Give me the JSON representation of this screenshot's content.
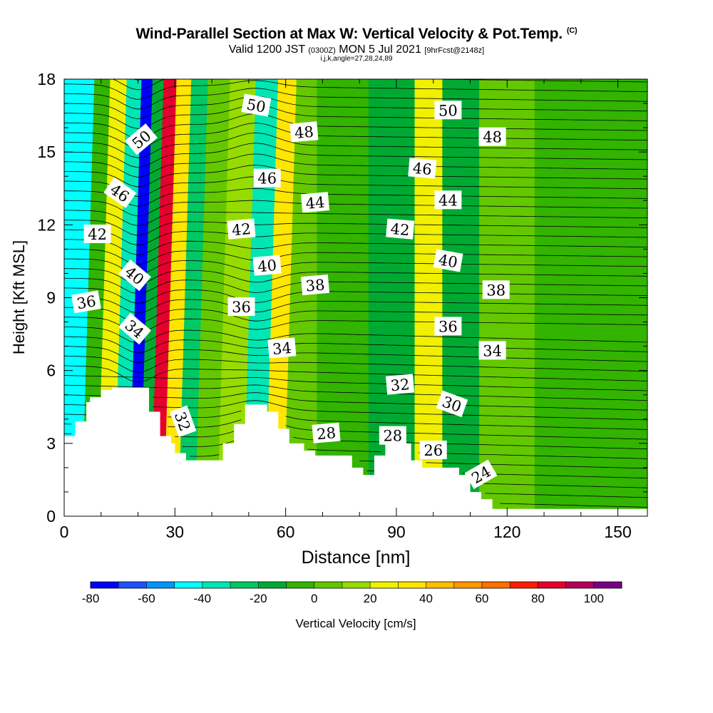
{
  "title": {
    "main": "Wind-Parallel Section at Max W: Vertical Velocity & Pot.Temp.",
    "copyright": "(C)",
    "valid_a": "Valid 1200 JST",
    "valid_utc": "(0300Z)",
    "valid_b": "MON 5 Jul 2021",
    "fcst": "[9hrFcst@2148z]",
    "indices": "i,j,k,angle=27,28,24,89"
  },
  "chart_data": {
    "type": "heatmap",
    "xlabel": "Distance [nm]",
    "ylabel": "Height [Kft MSL]",
    "xlim": [
      0,
      158
    ],
    "ylim": [
      0,
      18
    ],
    "xticks": [
      0,
      30,
      60,
      90,
      120,
      150
    ],
    "yticks": [
      0,
      3,
      6,
      9,
      12,
      15,
      18
    ],
    "colorbar": {
      "label": "Vertical Velocity [cm/s]",
      "tick_labels": [
        "-80",
        "-60",
        "-40",
        "-20",
        "0",
        "20",
        "40",
        "60",
        "80",
        "100"
      ],
      "range": [
        -80,
        110
      ],
      "colors": [
        "#0000ff",
        "#1e50ff",
        "#0096ff",
        "#00ffff",
        "#00e6b4",
        "#00c864",
        "#00aa32",
        "#32b400",
        "#64c800",
        "#96dc00",
        "#f0f000",
        "#ffe600",
        "#ffbe00",
        "#ff9600",
        "#ff6e00",
        "#ff1e00",
        "#e6002d",
        "#b4005a",
        "#780087"
      ]
    },
    "terrain": [
      [
        0,
        3.3
      ],
      [
        3,
        3.3
      ],
      [
        3,
        3.9
      ],
      [
        6,
        3.9
      ],
      [
        6,
        4.7
      ],
      [
        7,
        4.7
      ],
      [
        7,
        4.9
      ],
      [
        10,
        4.9
      ],
      [
        10,
        5.2
      ],
      [
        13,
        5.2
      ],
      [
        13,
        5.3
      ],
      [
        23,
        5.3
      ],
      [
        23,
        4.3
      ],
      [
        26,
        4.3
      ],
      [
        26,
        3.3
      ],
      [
        29,
        3.3
      ],
      [
        29,
        3.0
      ],
      [
        30,
        3.0
      ],
      [
        30,
        2.6
      ],
      [
        33,
        2.6
      ],
      [
        33,
        2.3
      ],
      [
        43,
        2.3
      ],
      [
        43,
        3.0
      ],
      [
        46,
        3.0
      ],
      [
        46,
        3.8
      ],
      [
        49,
        3.8
      ],
      [
        49,
        4.6
      ],
      [
        55,
        4.6
      ],
      [
        55,
        4.3
      ],
      [
        58,
        4.3
      ],
      [
        58,
        3.6
      ],
      [
        61,
        3.6
      ],
      [
        61,
        3.0
      ],
      [
        65,
        3.0
      ],
      [
        65,
        2.7
      ],
      [
        68,
        2.7
      ],
      [
        68,
        2.5
      ],
      [
        78,
        2.5
      ],
      [
        78,
        2.0
      ],
      [
        81,
        2.0
      ],
      [
        81,
        1.7
      ],
      [
        84,
        1.7
      ],
      [
        84,
        2.5
      ],
      [
        87,
        2.5
      ],
      [
        87,
        3.0
      ],
      [
        94,
        3.0
      ],
      [
        94,
        2.3
      ],
      [
        97,
        2.3
      ],
      [
        97,
        2.0
      ],
      [
        107,
        2.0
      ],
      [
        107,
        1.7
      ],
      [
        110,
        1.7
      ],
      [
        110,
        1.0
      ],
      [
        113,
        1.0
      ],
      [
        113,
        0.7
      ],
      [
        116,
        0.7
      ],
      [
        116,
        0.3
      ],
      [
        158,
        0.3
      ]
    ],
    "w_field": [
      {
        "x": 2.5,
        "w": -42
      },
      {
        "x": 7,
        "w": -10
      },
      {
        "x": 11,
        "w": 20
      },
      {
        "x": 16,
        "w": -40
      },
      {
        "x": 19,
        "w": -75
      },
      {
        "x": 22,
        "w": -20
      },
      {
        "x": 25,
        "w": 80
      },
      {
        "x": 29,
        "w": 30
      },
      {
        "x": 33,
        "w": -22
      },
      {
        "x": 38,
        "w": 5
      },
      {
        "x": 45,
        "w": 10
      },
      {
        "x": 52,
        "w": -40
      },
      {
        "x": 57,
        "w": 30
      },
      {
        "x": 62,
        "w": 5
      },
      {
        "x": 75,
        "w": -10
      },
      {
        "x": 90,
        "w": -20
      },
      {
        "x": 100,
        "w": 25
      },
      {
        "x": 105,
        "w": -18
      },
      {
        "x": 120,
        "w": 5
      },
      {
        "x": 135,
        "w": -8
      },
      {
        "x": 158,
        "w": -10
      }
    ],
    "theta_labels": [
      {
        "text": "50",
        "x": 21,
        "y": 15.5,
        "angle": -40
      },
      {
        "text": "50",
        "x": 52,
        "y": 16.9,
        "angle": 10
      },
      {
        "text": "50",
        "x": 104,
        "y": 16.7,
        "angle": 0
      },
      {
        "text": "48",
        "x": 65,
        "y": 15.8,
        "angle": -5
      },
      {
        "text": "48",
        "x": 116,
        "y": 15.6,
        "angle": 0
      },
      {
        "text": "46",
        "x": 15,
        "y": 13.3,
        "angle": 35
      },
      {
        "text": "46",
        "x": 55,
        "y": 13.9,
        "angle": 0
      },
      {
        "text": "46",
        "x": 97,
        "y": 14.3,
        "angle": 5
      },
      {
        "text": "44",
        "x": 68,
        "y": 12.9,
        "angle": -5
      },
      {
        "text": "44",
        "x": 104,
        "y": 13.0,
        "angle": 0
      },
      {
        "text": "42",
        "x": 9,
        "y": 11.6,
        "angle": 0
      },
      {
        "text": "42",
        "x": 48,
        "y": 11.8,
        "angle": -5
      },
      {
        "text": "42",
        "x": 91,
        "y": 11.8,
        "angle": 5
      },
      {
        "text": "40",
        "x": 19,
        "y": 9.9,
        "angle": 40
      },
      {
        "text": "40",
        "x": 55,
        "y": 10.3,
        "angle": -5
      },
      {
        "text": "40",
        "x": 104,
        "y": 10.5,
        "angle": 10
      },
      {
        "text": "38",
        "x": 68,
        "y": 9.5,
        "angle": -5
      },
      {
        "text": "38",
        "x": 117,
        "y": 9.3,
        "angle": 0
      },
      {
        "text": "36",
        "x": 6,
        "y": 8.8,
        "angle": -10
      },
      {
        "text": "36",
        "x": 48,
        "y": 8.6,
        "angle": 0
      },
      {
        "text": "36",
        "x": 104,
        "y": 7.8,
        "angle": 0
      },
      {
        "text": "34",
        "x": 19,
        "y": 7.7,
        "angle": 40
      },
      {
        "text": "34",
        "x": 59,
        "y": 6.9,
        "angle": -5
      },
      {
        "text": "34",
        "x": 116,
        "y": 6.8,
        "angle": 0
      },
      {
        "text": "32",
        "x": 32,
        "y": 3.9,
        "angle": 70
      },
      {
        "text": "32",
        "x": 91,
        "y": 5.4,
        "angle": -5
      },
      {
        "text": "30",
        "x": 105,
        "y": 4.6,
        "angle": 20
      },
      {
        "text": "28",
        "x": 71,
        "y": 3.4,
        "angle": -5
      },
      {
        "text": "28",
        "x": 89,
        "y": 3.3,
        "angle": 0
      },
      {
        "text": "26",
        "x": 100,
        "y": 2.7,
        "angle": 0
      },
      {
        "text": "24",
        "x": 113,
        "y": 1.7,
        "angle": -30
      }
    ]
  }
}
